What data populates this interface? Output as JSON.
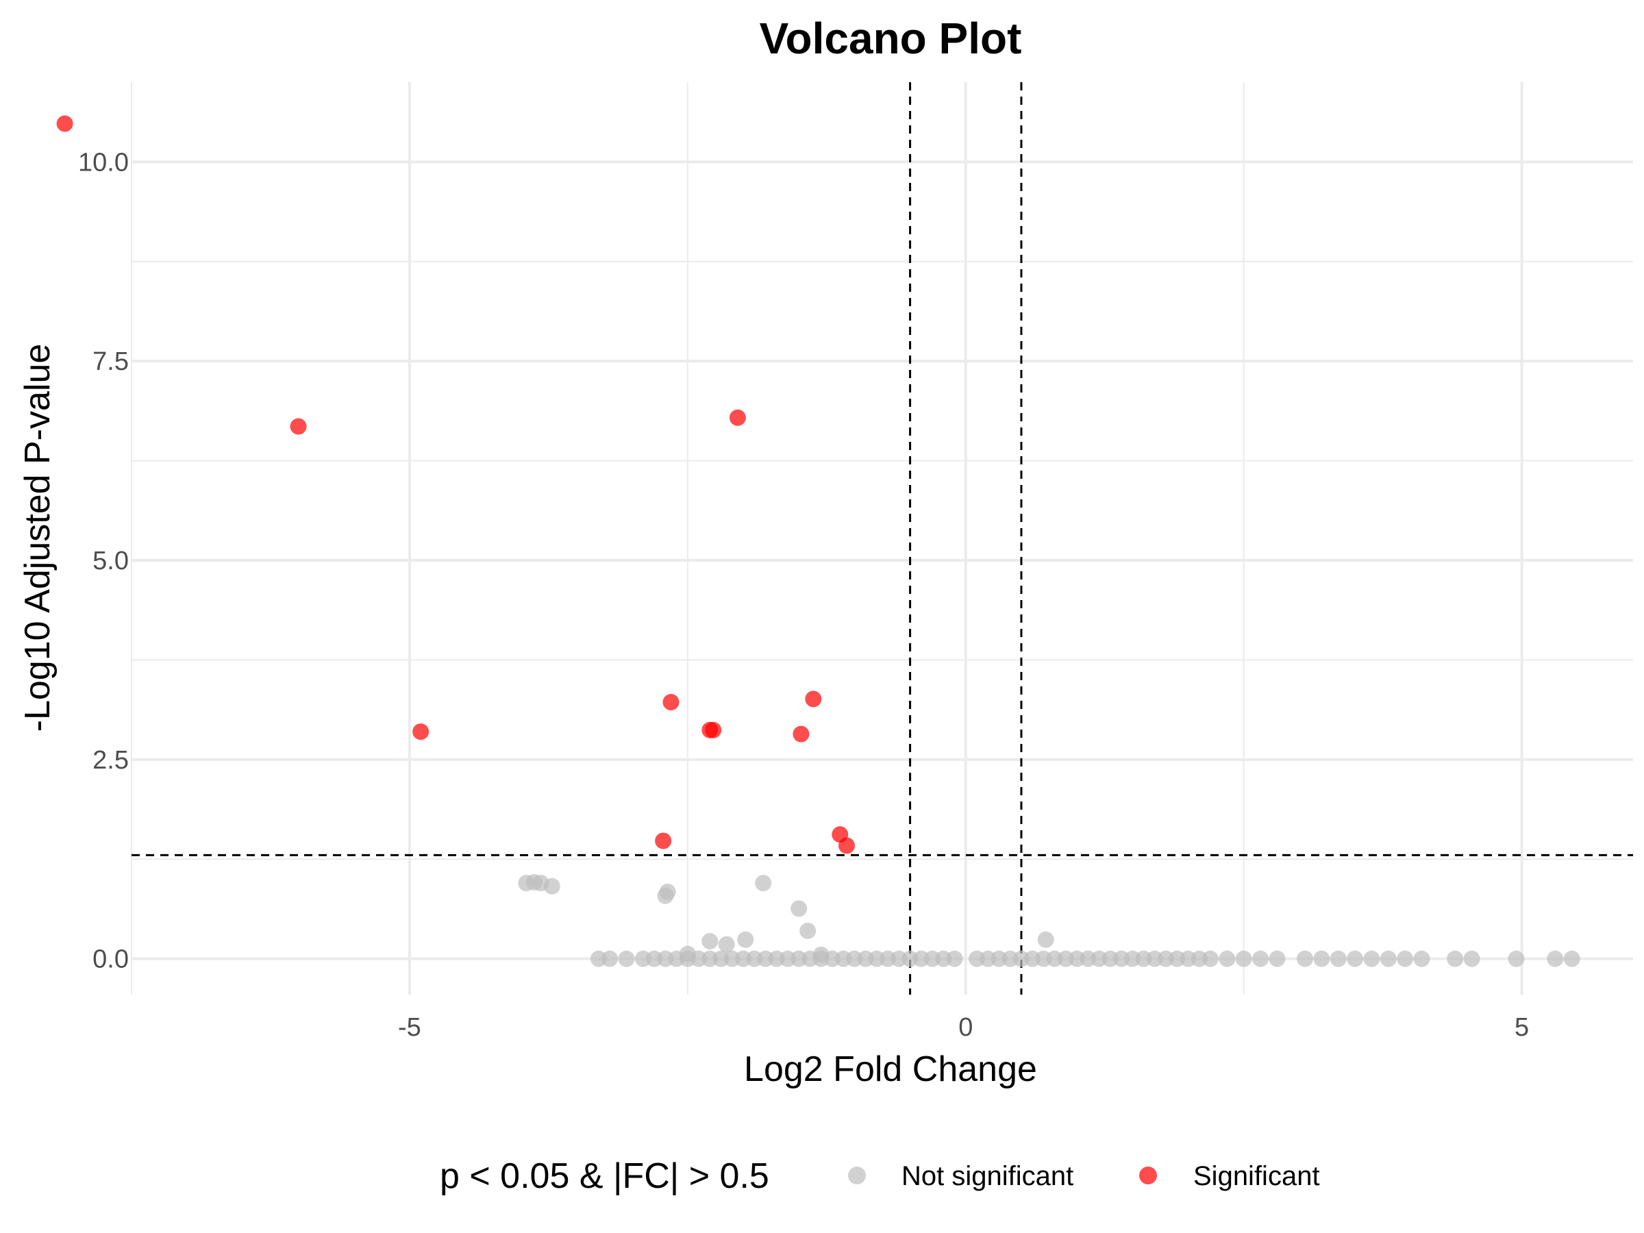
{
  "chart_data": {
    "type": "scatter",
    "title": "Volcano Plot",
    "xlabel": "Log2 Fold Change",
    "ylabel": "-Log10 Adjusted P-value",
    "xlim": [
      -7.5,
      6.0
    ],
    "ylim": [
      -0.45,
      11.0
    ],
    "x_ticks": [
      -5,
      0,
      5
    ],
    "x_tick_labels": [
      "-5",
      "0",
      "5"
    ],
    "y_ticks": [
      0.0,
      2.5,
      5.0,
      7.5,
      10.0
    ],
    "y_tick_labels": [
      "0.0",
      "2.5",
      "5.0",
      "7.5",
      "10.0"
    ],
    "grid": true,
    "threshold_lines": {
      "vertical": [
        -0.5,
        0.5
      ],
      "horizontal": [
        1.3
      ]
    },
    "legend": {
      "title": "p < 0.05 & |FC| > 0.5",
      "position": "bottom",
      "entries": [
        "Not significant",
        "Significant"
      ]
    },
    "colors": {
      "Not significant": "#bebebe",
      "Significant": "#ff0000",
      "threshold": "#000000",
      "grid": "#ebebeb"
    },
    "series": [
      {
        "name": "Significant",
        "points": [
          {
            "x": -8.1,
            "y": 10.48
          },
          {
            "x": -6.0,
            "y": 6.68
          },
          {
            "x": -2.05,
            "y": 6.79
          },
          {
            "x": -4.9,
            "y": 2.85
          },
          {
            "x": -2.65,
            "y": 3.22
          },
          {
            "x": -2.3,
            "y": 2.87
          },
          {
            "x": -2.27,
            "y": 2.87
          },
          {
            "x": -1.37,
            "y": 3.26
          },
          {
            "x": -1.48,
            "y": 2.82
          },
          {
            "x": -2.72,
            "y": 1.48
          },
          {
            "x": -1.13,
            "y": 1.56
          },
          {
            "x": -1.07,
            "y": 1.42
          }
        ]
      },
      {
        "name": "Not significant",
        "points": [
          {
            "x": -3.95,
            "y": 0.95
          },
          {
            "x": -3.88,
            "y": 0.96
          },
          {
            "x": -3.82,
            "y": 0.95
          },
          {
            "x": -3.72,
            "y": 0.91
          },
          {
            "x": -2.68,
            "y": 0.84
          },
          {
            "x": -2.7,
            "y": 0.79
          },
          {
            "x": -1.82,
            "y": 0.95
          },
          {
            "x": -1.5,
            "y": 0.63
          },
          {
            "x": -1.42,
            "y": 0.35
          },
          {
            "x": -2.3,
            "y": 0.22
          },
          {
            "x": -2.15,
            "y": 0.18
          },
          {
            "x": -1.98,
            "y": 0.24
          },
          {
            "x": 0.72,
            "y": 0.24
          },
          {
            "x": -2.5,
            "y": 0.06
          },
          {
            "x": -1.3,
            "y": 0.05
          },
          {
            "x": -3.3,
            "y": 0.0
          },
          {
            "x": -3.2,
            "y": 0.0
          },
          {
            "x": -3.05,
            "y": 0.0
          },
          {
            "x": -2.9,
            "y": 0.0
          },
          {
            "x": -2.8,
            "y": 0.0
          },
          {
            "x": -2.7,
            "y": 0.0
          },
          {
            "x": -2.6,
            "y": 0.0
          },
          {
            "x": -2.5,
            "y": 0.0
          },
          {
            "x": -2.4,
            "y": 0.0
          },
          {
            "x": -2.3,
            "y": 0.0
          },
          {
            "x": -2.2,
            "y": 0.0
          },
          {
            "x": -2.1,
            "y": 0.0
          },
          {
            "x": -2.0,
            "y": 0.0
          },
          {
            "x": -1.9,
            "y": 0.0
          },
          {
            "x": -1.8,
            "y": 0.0
          },
          {
            "x": -1.7,
            "y": 0.0
          },
          {
            "x": -1.6,
            "y": 0.0
          },
          {
            "x": -1.5,
            "y": 0.0
          },
          {
            "x": -1.4,
            "y": 0.0
          },
          {
            "x": -1.3,
            "y": 0.0
          },
          {
            "x": -1.2,
            "y": 0.0
          },
          {
            "x": -1.1,
            "y": 0.0
          },
          {
            "x": -1.0,
            "y": 0.0
          },
          {
            "x": -0.9,
            "y": 0.0
          },
          {
            "x": -0.8,
            "y": 0.0
          },
          {
            "x": -0.7,
            "y": 0.0
          },
          {
            "x": -0.6,
            "y": 0.0
          },
          {
            "x": -0.5,
            "y": 0.0
          },
          {
            "x": -0.4,
            "y": 0.0
          },
          {
            "x": -0.3,
            "y": 0.0
          },
          {
            "x": -0.2,
            "y": 0.0
          },
          {
            "x": -0.1,
            "y": 0.0
          },
          {
            "x": 0.1,
            "y": 0.0
          },
          {
            "x": 0.2,
            "y": 0.0
          },
          {
            "x": 0.3,
            "y": 0.0
          },
          {
            "x": 0.4,
            "y": 0.0
          },
          {
            "x": 0.5,
            "y": 0.0
          },
          {
            "x": 0.6,
            "y": 0.0
          },
          {
            "x": 0.7,
            "y": 0.0
          },
          {
            "x": 0.8,
            "y": 0.0
          },
          {
            "x": 0.9,
            "y": 0.0
          },
          {
            "x": 1.0,
            "y": 0.0
          },
          {
            "x": 1.1,
            "y": 0.0
          },
          {
            "x": 1.2,
            "y": 0.0
          },
          {
            "x": 1.3,
            "y": 0.0
          },
          {
            "x": 1.4,
            "y": 0.0
          },
          {
            "x": 1.5,
            "y": 0.0
          },
          {
            "x": 1.6,
            "y": 0.0
          },
          {
            "x": 1.7,
            "y": 0.0
          },
          {
            "x": 1.8,
            "y": 0.0
          },
          {
            "x": 1.9,
            "y": 0.0
          },
          {
            "x": 2.0,
            "y": 0.0
          },
          {
            "x": 2.1,
            "y": 0.0
          },
          {
            "x": 2.2,
            "y": 0.0
          },
          {
            "x": 2.35,
            "y": 0.0
          },
          {
            "x": 2.5,
            "y": 0.0
          },
          {
            "x": 2.65,
            "y": 0.0
          },
          {
            "x": 2.8,
            "y": 0.0
          },
          {
            "x": 3.05,
            "y": 0.0
          },
          {
            "x": 3.2,
            "y": 0.0
          },
          {
            "x": 3.35,
            "y": 0.0
          },
          {
            "x": 3.5,
            "y": 0.0
          },
          {
            "x": 3.65,
            "y": 0.0
          },
          {
            "x": 3.8,
            "y": 0.0
          },
          {
            "x": 3.95,
            "y": 0.0
          },
          {
            "x": 4.1,
            "y": 0.0
          },
          {
            "x": 4.4,
            "y": 0.0
          },
          {
            "x": 4.55,
            "y": 0.0
          },
          {
            "x": 4.95,
            "y": 0.0
          },
          {
            "x": 5.3,
            "y": 0.0
          },
          {
            "x": 5.45,
            "y": 0.0
          }
        ]
      }
    ]
  }
}
